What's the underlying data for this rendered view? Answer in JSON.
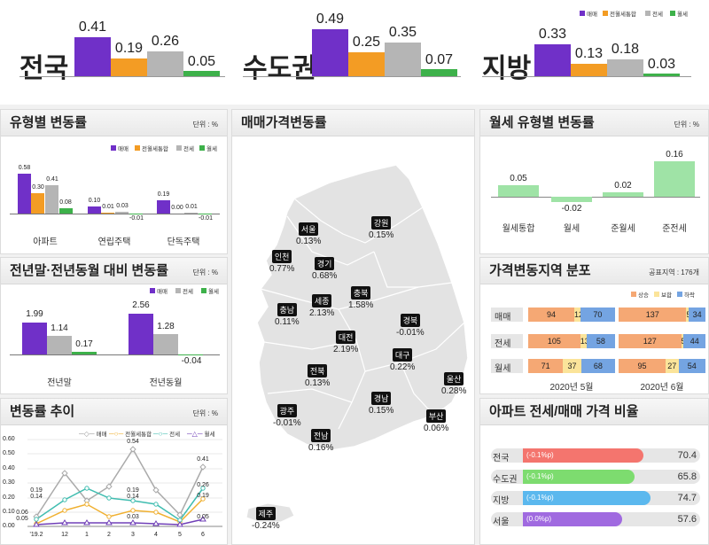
{
  "colors": {
    "maemae": "#7030c8",
    "jeonwol": "#f39c24",
    "jeonse": "#b5b5b5",
    "wolse": "#3db14a"
  },
  "top": {
    "legend": [
      "매매",
      "전월세통합",
      "전세",
      "월세"
    ],
    "groups": [
      {
        "name": "전국",
        "values": [
          "0.41",
          "0.19",
          "0.26",
          "0.05"
        ]
      },
      {
        "name": "수도권",
        "values": [
          "0.49",
          "0.25",
          "0.35",
          "0.07"
        ]
      },
      {
        "name": "지방",
        "values": [
          "0.33",
          "0.13",
          "0.18",
          "0.03"
        ]
      }
    ]
  },
  "type_rates": {
    "title": "유형별 변동률",
    "unit": "단위 : %",
    "legend": [
      "매매",
      "전월세통합",
      "전세",
      "월세"
    ],
    "groups": [
      {
        "name": "아파트",
        "values": [
          "0.58",
          "0.30",
          "0.41",
          "0.08"
        ]
      },
      {
        "name": "연립주택",
        "values": [
          "0.10",
          "0.01",
          "0.03",
          "-0.01"
        ]
      },
      {
        "name": "단독주택",
        "values": [
          "0.19",
          "0.00",
          "0.01",
          "-0.01"
        ]
      }
    ]
  },
  "ytd": {
    "title": "전년말·전년동월 대비 변동률",
    "unit": "단위 : %",
    "legend": [
      "매매",
      "전세",
      "월세"
    ],
    "groups": [
      {
        "name": "전년말",
        "values": [
          "1.99",
          "1.14",
          "0.17"
        ]
      },
      {
        "name": "전년동월",
        "values": [
          "2.56",
          "1.28",
          "-0.04"
        ]
      }
    ]
  },
  "trend": {
    "title": "변동률 추이",
    "unit": "단위 : %",
    "legend": [
      "매매",
      "전월세통합",
      "전세",
      "월세"
    ],
    "y_ticks": [
      "0.60",
      "0.50",
      "0.40",
      "0.30",
      "0.20",
      "0.10",
      "0.00"
    ],
    "x_ticks": [
      "'19.2",
      "12",
      "1",
      "2",
      "3",
      "4",
      "5",
      "6"
    ],
    "point_labels": [
      "0.19",
      "0.14",
      "0.06",
      "0.05",
      "0.54",
      "0.19",
      "0.14",
      "0.03",
      "0.41",
      "0.26",
      "0.19",
      "0.05"
    ]
  },
  "map": {
    "title": "매매가격변동률",
    "regions": [
      {
        "name": "서울",
        "value": "0.13%"
      },
      {
        "name": "강원",
        "value": "0.15%"
      },
      {
        "name": "인천",
        "value": "0.77%"
      },
      {
        "name": "경기",
        "value": "0.68%"
      },
      {
        "name": "충남",
        "value": "0.11%"
      },
      {
        "name": "세종",
        "value": "2.13%"
      },
      {
        "name": "충북",
        "value": "1.58%"
      },
      {
        "name": "경북",
        "value": "-0.01%"
      },
      {
        "name": "대전",
        "value": "2.19%"
      },
      {
        "name": "대구",
        "value": "0.22%"
      },
      {
        "name": "전북",
        "value": "0.13%"
      },
      {
        "name": "울산",
        "value": "0.28%"
      },
      {
        "name": "경남",
        "value": "0.15%"
      },
      {
        "name": "광주",
        "value": "-0.01%"
      },
      {
        "name": "부산",
        "value": "0.06%"
      },
      {
        "name": "전남",
        "value": "0.16%"
      },
      {
        "name": "제주",
        "value": "-0.24%"
      }
    ]
  },
  "monthly_rent": {
    "title": "월세 유형별 변동률",
    "unit": "단위 : %",
    "items": [
      {
        "name": "월세통합",
        "value": "0.05"
      },
      {
        "name": "월세",
        "value": "-0.02"
      },
      {
        "name": "준월세",
        "value": "0.02"
      },
      {
        "name": "준전세",
        "value": "0.16"
      }
    ]
  },
  "distribution": {
    "title": "가격변동지역 분포",
    "subtitle": "공표지역 : 176개",
    "legend": [
      "상승",
      "보합",
      "하락"
    ],
    "colors": [
      "#f5a874",
      "#fbe49a",
      "#74a4e2"
    ],
    "rows": [
      {
        "name": "매매",
        "may": [
          "94",
          "12",
          "70"
        ],
        "jun": [
          "137",
          "5",
          "34"
        ]
      },
      {
        "name": "전세",
        "may": [
          "105",
          "13",
          "58"
        ],
        "jun": [
          "127",
          "5",
          "44"
        ]
      },
      {
        "name": "월세",
        "may": [
          "71",
          "37",
          "68"
        ],
        "jun": [
          "95",
          "27",
          "54"
        ]
      }
    ],
    "months": [
      "2020년 5월",
      "2020년 6월"
    ]
  },
  "ratio": {
    "title": "아파트 전세/매매 가격 비율",
    "items": [
      {
        "name": "전국",
        "change": "(-0.1%p)",
        "value": "70.4",
        "color": "#f4756e"
      },
      {
        "name": "수도권",
        "change": "(-0.1%p)",
        "value": "65.8",
        "color": "#7ddc6f"
      },
      {
        "name": "지방",
        "change": "(-0.1%p)",
        "value": "74.7",
        "color": "#5bb8ee"
      },
      {
        "name": "서울",
        "change": "(0.0%p)",
        "value": "57.6",
        "color": "#a06ae0"
      }
    ]
  }
}
